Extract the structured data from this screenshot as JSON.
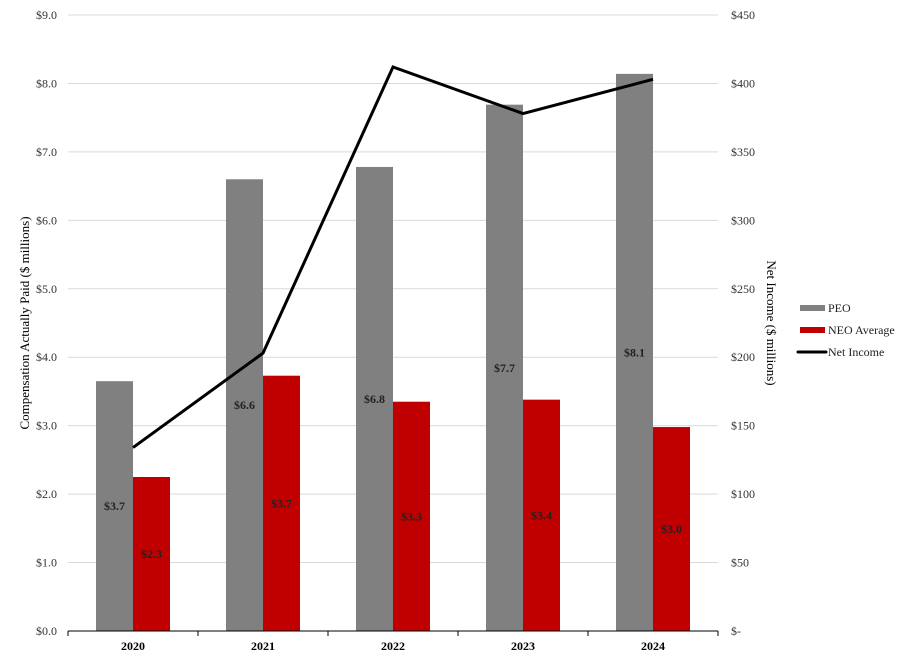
{
  "chart_data": {
    "type": "bar",
    "categories": [
      "2020",
      "2021",
      "2022",
      "2023",
      "2024"
    ],
    "series": [
      {
        "name": "PEO",
        "kind": "bar",
        "axis": "left",
        "color": "#808080",
        "values": [
          3.65,
          6.6,
          6.78,
          7.69,
          8.14
        ],
        "labels": [
          "$3.7",
          "$6.6",
          "$6.8",
          "$7.7",
          "$8.1"
        ]
      },
      {
        "name": "NEO Average",
        "kind": "bar",
        "axis": "left",
        "color": "#c00000",
        "values": [
          2.25,
          3.73,
          3.35,
          3.38,
          2.98
        ],
        "labels": [
          "$2.3",
          "$3.7",
          "$3.3",
          "$3.4",
          "$3.0"
        ]
      },
      {
        "name": "Net Income",
        "kind": "line",
        "axis": "right",
        "color": "#000000",
        "values": [
          134,
          203,
          412,
          378,
          403
        ]
      }
    ],
    "ylabel": "Compensation Actually Paid ($ millions)",
    "y2label": "Net Income  ($ millions)",
    "ylim": [
      0,
      9
    ],
    "y2lim": [
      0,
      450
    ],
    "yticks": [
      "$0.0",
      "$1.0",
      "$2.0",
      "$3.0",
      "$4.0",
      "$5.0",
      "$6.0",
      "$7.0",
      "$8.0",
      "$9.0"
    ],
    "y2ticks": [
      "$-",
      "$50",
      "$100",
      "$150",
      "$200",
      "$250",
      "$300",
      "$350",
      "$400",
      "$450"
    ],
    "grid": true,
    "legend_placement": "right"
  }
}
